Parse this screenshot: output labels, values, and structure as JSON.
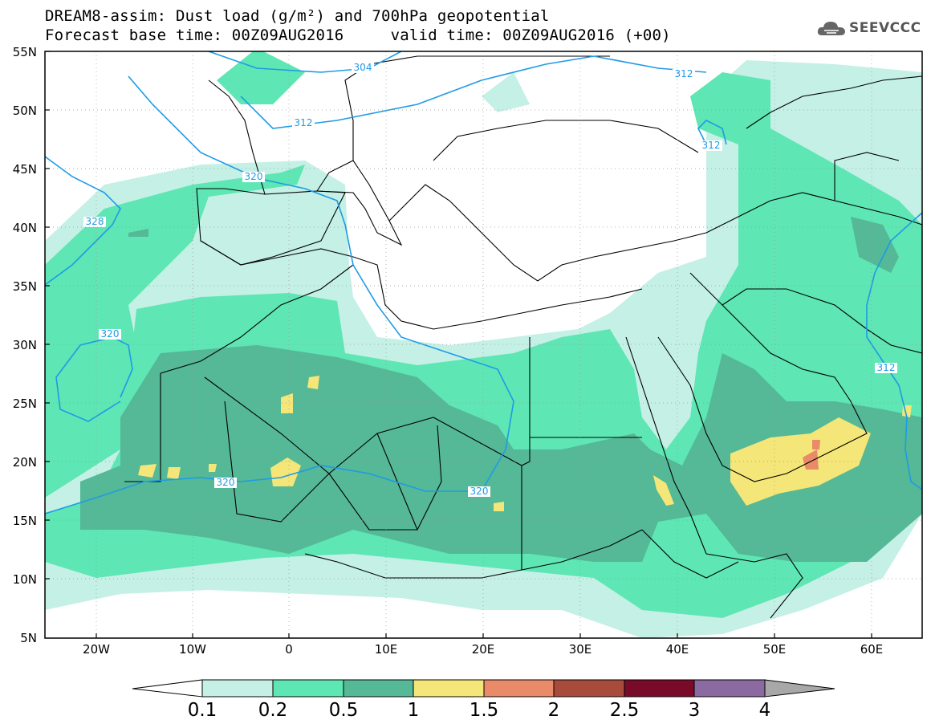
{
  "title": {
    "line1": "DREAM8-assim: Dust load (g/m²) and 700hPa geopotential",
    "line2": "Forecast base time: 00Z09AUG2016     valid time: 00Z09AUG2016 (+00)"
  },
  "logo": {
    "text": "SEEVCCC",
    "icon": "cloud-logo-icon"
  },
  "axes": {
    "lat_labels": [
      "55N",
      "50N",
      "45N",
      "40N",
      "35N",
      "30N",
      "25N",
      "20N",
      "15N",
      "10N",
      "5N"
    ],
    "lon_labels": [
      "20W",
      "10W",
      "0",
      "10E",
      "20E",
      "30E",
      "40E",
      "50E",
      "60E"
    ]
  },
  "contour_labels": [
    "304",
    "312",
    "312",
    "312",
    "312",
    "320",
    "320",
    "320",
    "320",
    "328"
  ],
  "colorbar": {
    "labels": [
      "0.1",
      "0.2",
      "0.5",
      "1",
      "1.5",
      "2",
      "2.5",
      "3",
      "4"
    ],
    "colors": [
      "#c4f0e6",
      "#5ee6b4",
      "#55b896",
      "#f4e678",
      "#e98a68",
      "#a84a3c",
      "#7a0a2a",
      "#8a6aa0",
      "#a8a8a8"
    ]
  },
  "colors": {
    "light": "#c4f0e6",
    "medium": "#5ee6b4",
    "dark": "#55b896",
    "yellow": "#f4e678",
    "orange": "#e98a68",
    "contour": "#1e9be6",
    "border": "#000000"
  }
}
